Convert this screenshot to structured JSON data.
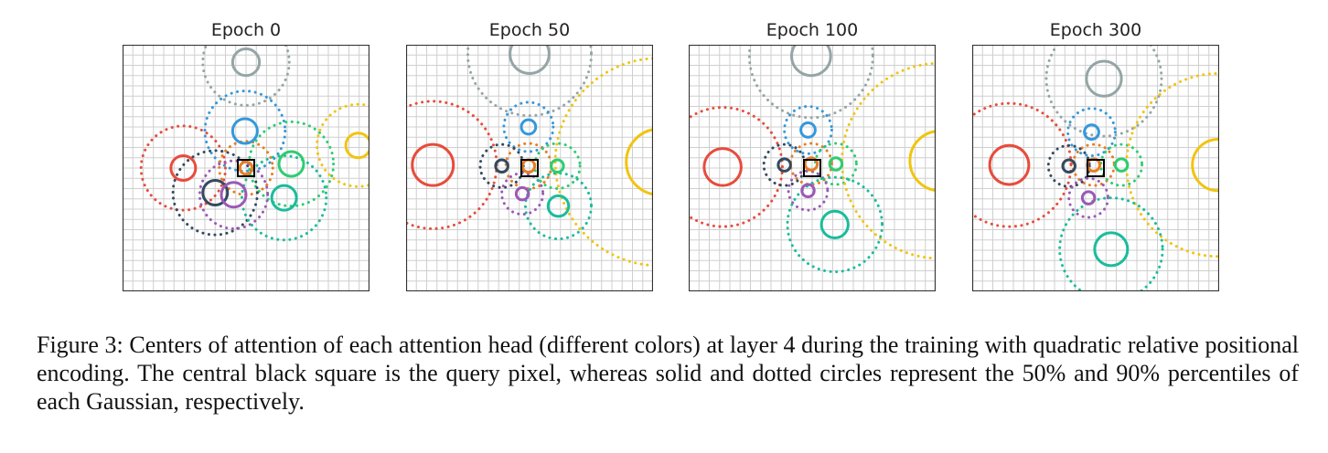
{
  "figure": {
    "caption": "Figure 3: Centers of attention of each attention head (different colors) at layer 4 during the training with quadratic relative positional encoding. The central black square is the query pixel, whereas solid and dotted circles represent the 50% and 90% percentiles of each Gaussian, respectively.",
    "colors": {
      "gray": "#95a5a6",
      "blue": "#3498db",
      "red": "#e74c3c",
      "orange": "#e67e22",
      "green": "#2ecc71",
      "yellow": "#f1c40f",
      "dark": "#34495e",
      "purple": "#9b59b6",
      "teal": "#1abc9c"
    }
  },
  "chart_data": [
    {
      "type": "scatter",
      "title": "Epoch 0",
      "grid": true,
      "query_pixel": [
        0,
        0
      ],
      "heads": [
        {
          "color": "gray",
          "center": [
            0,
            -10.3
          ],
          "r50": 1.3,
          "r90": 4.2
        },
        {
          "color": "blue",
          "center": [
            -0.1,
            -3.6
          ],
          "r50": 1.2,
          "r90": 3.9
        },
        {
          "color": "red",
          "center": [
            -6.1,
            0
          ],
          "r50": 1.2,
          "r90": 4.1
        },
        {
          "color": "orange",
          "center": [
            0,
            0
          ],
          "r50": 0.6,
          "r90": 2.6
        },
        {
          "color": "green",
          "center": [
            4.4,
            -0.4
          ],
          "r50": 1.2,
          "r90": 4.1
        },
        {
          "color": "yellow",
          "center": [
            10.9,
            -2.2
          ],
          "r50": 1.2,
          "r90": 4.0
        },
        {
          "color": "dark",
          "center": [
            -3.0,
            2.4
          ],
          "r50": 1.2,
          "r90": 4.1
        },
        {
          "color": "purple",
          "center": [
            -1.2,
            2.6
          ],
          "r50": 1.2,
          "r90": 3.3
        },
        {
          "color": "teal",
          "center": [
            3.7,
            2.9
          ],
          "r50": 1.2,
          "r90": 4.1
        }
      ]
    },
    {
      "type": "scatter",
      "title": "Epoch 50",
      "grid": true,
      "query_pixel": [
        0,
        0
      ],
      "heads": [
        {
          "color": "gray",
          "center": [
            0,
            -11.1
          ],
          "r50": 1.9,
          "r90": 6.0
        },
        {
          "color": "blue",
          "center": [
            -0.1,
            -4.0
          ],
          "r50": 0.7,
          "r90": 2.4
        },
        {
          "color": "red",
          "center": [
            -9.4,
            -0.3
          ],
          "r50": 2.0,
          "r90": 6.2
        },
        {
          "color": "orange",
          "center": [
            -0.1,
            -0.2
          ],
          "r50": 0.6,
          "r90": 2.2
        },
        {
          "color": "green",
          "center": [
            2.7,
            -0.2
          ],
          "r50": 0.6,
          "r90": 2.2
        },
        {
          "color": "yellow",
          "center": [
            12.6,
            -0.6
          ],
          "r50": 3.2,
          "r90": 10.1
        },
        {
          "color": "dark",
          "center": [
            -2.7,
            -0.2
          ],
          "r50": 0.6,
          "r90": 2.1
        },
        {
          "color": "purple",
          "center": [
            -0.7,
            2.5
          ],
          "r50": 0.6,
          "r90": 2.0
        },
        {
          "color": "teal",
          "center": [
            2.8,
            3.7
          ],
          "r50": 1.0,
          "r90": 3.2
        }
      ]
    },
    {
      "type": "scatter",
      "title": "Epoch 100",
      "grid": true,
      "query_pixel": [
        0,
        0
      ],
      "heads": [
        {
          "color": "gray",
          "center": [
            -0.1,
            -10.9
          ],
          "r50": 1.9,
          "r90": 6.0
        },
        {
          "color": "blue",
          "center": [
            -0.4,
            -3.7
          ],
          "r50": 0.7,
          "r90": 2.3
        },
        {
          "color": "red",
          "center": [
            -8.7,
            -0.1
          ],
          "r50": 1.8,
          "r90": 5.8
        },
        {
          "color": "orange",
          "center": [
            -0.1,
            -0.4
          ],
          "r50": 0.6,
          "r90": 2.0
        },
        {
          "color": "green",
          "center": [
            2.3,
            -0.4
          ],
          "r50": 0.6,
          "r90": 2.0
        },
        {
          "color": "yellow",
          "center": [
            12.4,
            -0.7
          ],
          "r50": 2.9,
          "r90": 9.5
        },
        {
          "color": "dark",
          "center": [
            -2.7,
            -0.3
          ],
          "r50": 0.6,
          "r90": 2.0
        },
        {
          "color": "purple",
          "center": [
            -0.4,
            2.2
          ],
          "r50": 0.6,
          "r90": 1.9
        },
        {
          "color": "teal",
          "center": [
            2.2,
            5.5
          ],
          "r50": 1.3,
          "r90": 4.6
        }
      ]
    },
    {
      "type": "scatter",
      "title": "Epoch 300",
      "grid": true,
      "query_pixel": [
        0,
        0
      ],
      "heads": [
        {
          "color": "gray",
          "center": [
            0.8,
            -8.7
          ],
          "r50": 1.7,
          "r90": 5.6
        },
        {
          "color": "blue",
          "center": [
            -0.4,
            -3.5
          ],
          "r50": 0.7,
          "r90": 2.3
        },
        {
          "color": "red",
          "center": [
            -8.4,
            -0.3
          ],
          "r50": 1.9,
          "r90": 6.0
        },
        {
          "color": "orange",
          "center": [
            -0.2,
            -0.3
          ],
          "r50": 0.6,
          "r90": 2.0
        },
        {
          "color": "green",
          "center": [
            2.5,
            -0.3
          ],
          "r50": 0.6,
          "r90": 2.0
        },
        {
          "color": "yellow",
          "center": [
            11.9,
            -0.3
          ],
          "r50": 2.5,
          "r90": 8.9
        },
        {
          "color": "dark",
          "center": [
            -2.6,
            -0.2
          ],
          "r50": 0.6,
          "r90": 2.0
        },
        {
          "color": "purple",
          "center": [
            -0.7,
            2.9
          ],
          "r50": 0.6,
          "r90": 1.9
        },
        {
          "color": "teal",
          "center": [
            1.5,
            7.9
          ],
          "r50": 1.6,
          "r90": 5.0
        }
      ]
    }
  ]
}
